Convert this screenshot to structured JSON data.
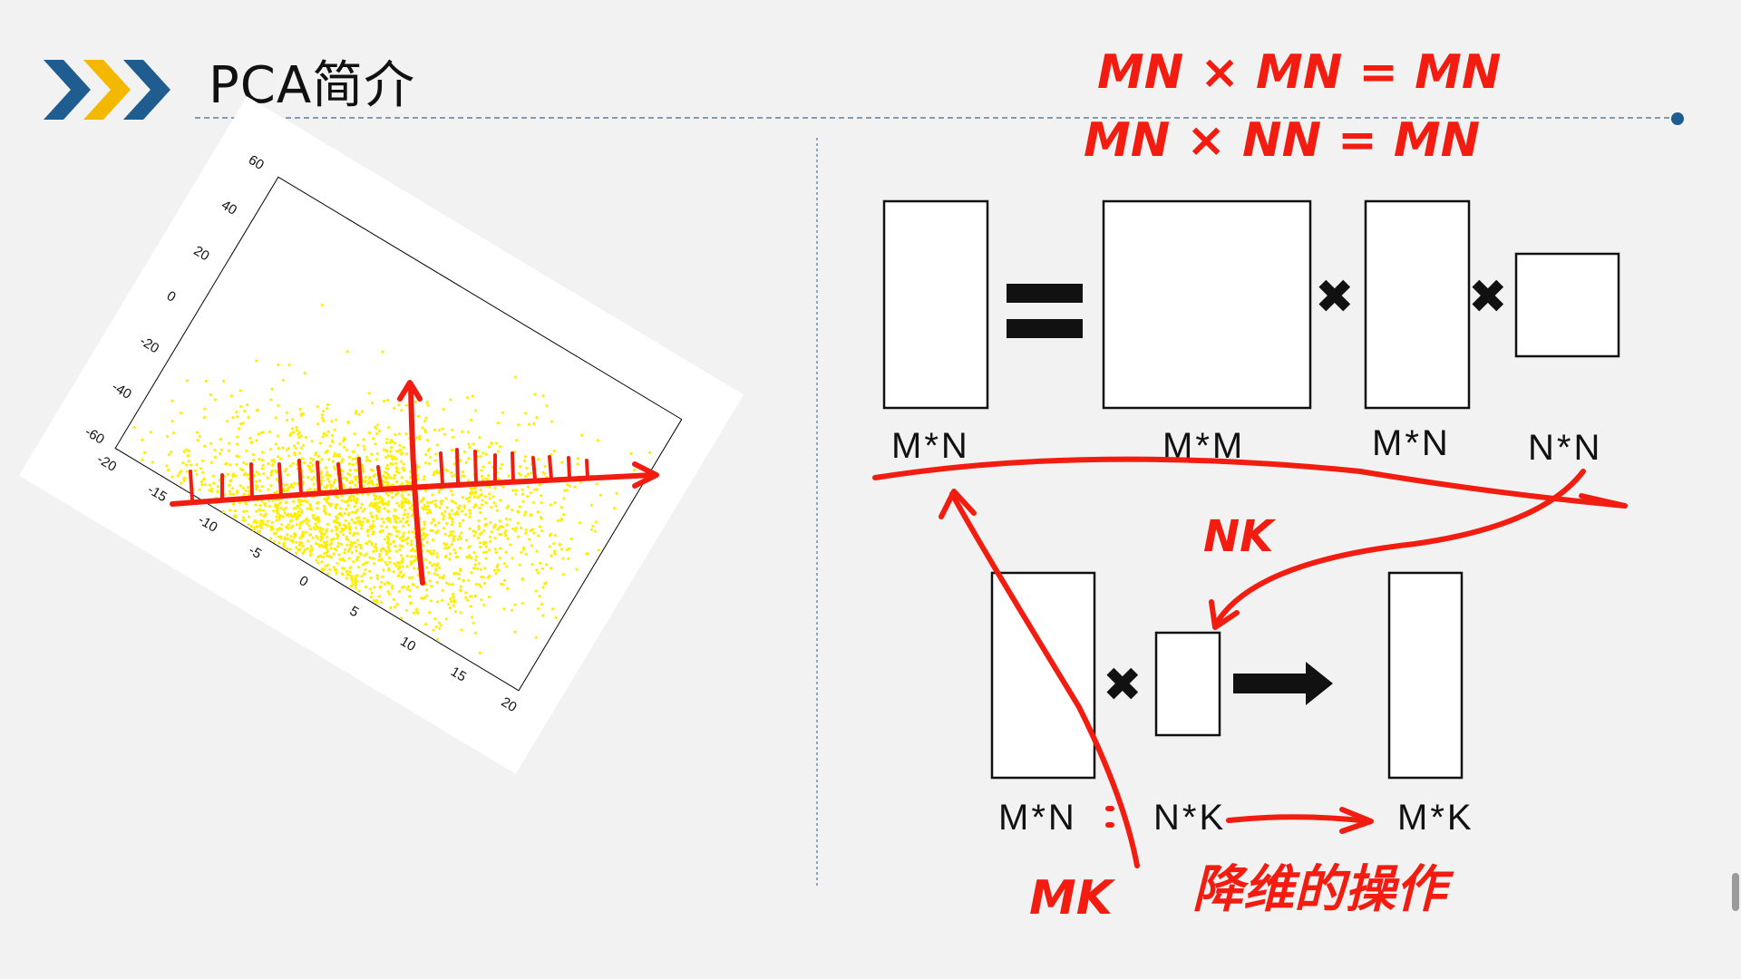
{
  "slide": {
    "title": "PCA简介",
    "colors": {
      "chevron_dark": "#1f5c8f",
      "chevron_accent": "#f5b800",
      "annotation_red": "#f21d10",
      "point_yellow": "#ffee00"
    }
  },
  "chart_data": {
    "type": "scatter",
    "title": "",
    "xlabel": "",
    "ylabel": "",
    "xlim": [
      -20,
      20
    ],
    "ylim": [
      -60,
      60
    ],
    "x_ticks": [
      "-20",
      "-15",
      "-10",
      "-5",
      "0",
      "5",
      "10",
      "15",
      "20"
    ],
    "y_ticks": [
      "-60",
      "-40",
      "-20",
      "0",
      "20",
      "40",
      "60"
    ],
    "series": [
      {
        "color": "#ffee00",
        "distribution": "elongated gaussian cloud",
        "center": [
          0,
          -38
        ],
        "spread": [
          8,
          4.5
        ]
      }
    ],
    "rotation_deg": 31
  },
  "diagram": {
    "top_labels": [
      "M*N",
      "M*M",
      "M*N",
      "N*N"
    ],
    "equals_symbol": "=",
    "multiply_symbol": "✖",
    "bottom_labels": [
      "M*N",
      "N*K",
      "M*K"
    ]
  },
  "handwriting": {
    "line1": "MN × MN = MN",
    "line2": "MN × NN = MN",
    "nk": "NK",
    "mk": "MK",
    "note": "降维的操作"
  }
}
